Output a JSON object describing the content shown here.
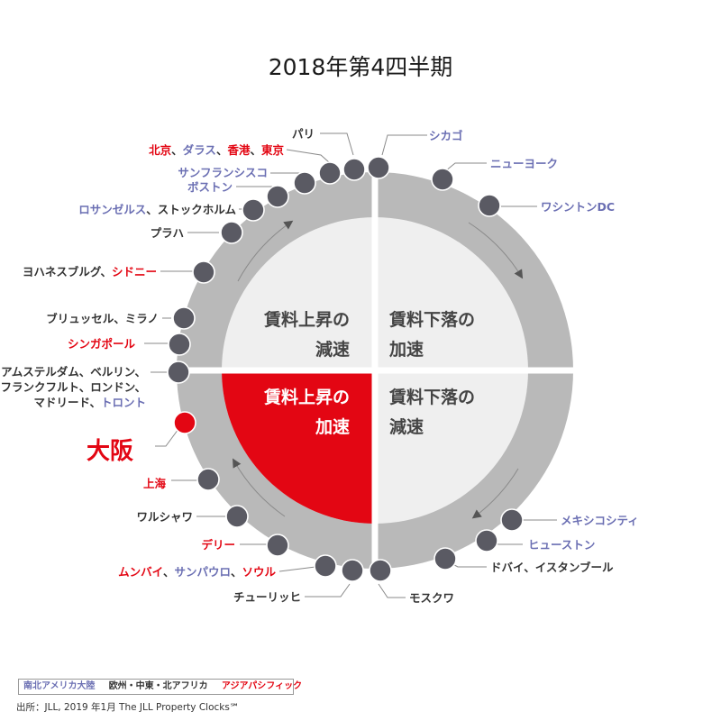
{
  "title": "2018年第4四半期",
  "colors": {
    "americas": "#6b6fb3",
    "emea": "#333333",
    "asia": "#e30613",
    "ring": "#b9b9b9",
    "inner": "#efefef",
    "highlight": "#e30613",
    "dot": "#5a5a63"
  },
  "quadrants": {
    "top_left": [
      "賃料上昇の",
      "減速"
    ],
    "top_right": [
      "賃料下落の",
      "加速"
    ],
    "bottom_left": [
      "賃料上昇の",
      "加速"
    ],
    "bottom_right": [
      "賃料下落の",
      "減速"
    ]
  },
  "labels": [
    {
      "parts": [
        {
          "text": "パリ",
          "region": "emea"
        }
      ]
    },
    {
      "parts": [
        {
          "text": "シカゴ",
          "region": "americas"
        }
      ]
    },
    {
      "parts": [
        {
          "text": "ニューヨーク",
          "region": "americas"
        }
      ]
    },
    {
      "parts": [
        {
          "text": "ワシントンDC",
          "region": "americas"
        }
      ]
    },
    {
      "parts": [
        {
          "text": "北京",
          "region": "asia"
        },
        {
          "text": "、",
          "region": "emea"
        },
        {
          "text": "ダラス",
          "region": "americas"
        },
        {
          "text": "、",
          "region": "emea"
        },
        {
          "text": "香港",
          "region": "asia"
        },
        {
          "text": "、",
          "region": "emea"
        },
        {
          "text": "東京",
          "region": "asia"
        }
      ]
    },
    {
      "parts": [
        {
          "text": "サンフランシスコ",
          "region": "americas"
        }
      ]
    },
    {
      "parts": [
        {
          "text": "ボストン",
          "region": "americas"
        }
      ]
    },
    {
      "parts": [
        {
          "text": "ロサンゼルス",
          "region": "americas"
        },
        {
          "text": "、ストックホルム",
          "region": "emea"
        }
      ]
    },
    {
      "parts": [
        {
          "text": "プラハ",
          "region": "emea"
        }
      ]
    },
    {
      "parts": [
        {
          "text": "ヨハネスブルグ、",
          "region": "emea"
        },
        {
          "text": "シドニー",
          "region": "asia"
        }
      ]
    },
    {
      "parts": [
        {
          "text": "ブリュッセル、ミラノ",
          "region": "emea"
        }
      ]
    },
    {
      "parts": [
        {
          "text": "シンガポール",
          "region": "asia"
        }
      ]
    },
    {
      "parts": [
        {
          "text": "アムステルダム、ベルリン、",
          "region": "emea"
        }
      ]
    },
    {
      "parts": [
        {
          "text": "フランクフルト、ロンドン、",
          "region": "emea"
        }
      ]
    },
    {
      "parts": [
        {
          "text": "マドリード、",
          "region": "emea"
        },
        {
          "text": "トロント",
          "region": "americas"
        }
      ]
    },
    {
      "parts": [
        {
          "text": "大阪",
          "region": "asia"
        }
      ],
      "big": true
    },
    {
      "parts": [
        {
          "text": "上海",
          "region": "asia"
        }
      ]
    },
    {
      "parts": [
        {
          "text": "ワルシャワ",
          "region": "emea"
        }
      ]
    },
    {
      "parts": [
        {
          "text": "デリー",
          "region": "asia"
        }
      ]
    },
    {
      "parts": [
        {
          "text": "ムンバイ",
          "region": "asia"
        },
        {
          "text": "、",
          "region": "emea"
        },
        {
          "text": "サンパウロ",
          "region": "americas"
        },
        {
          "text": "、",
          "region": "emea"
        },
        {
          "text": "ソウル",
          "region": "asia"
        }
      ]
    },
    {
      "parts": [
        {
          "text": "チューリッヒ",
          "region": "emea"
        }
      ]
    },
    {
      "parts": [
        {
          "text": "モスクワ",
          "region": "emea"
        }
      ]
    },
    {
      "parts": [
        {
          "text": "ドバイ、イスタンブール",
          "region": "emea"
        }
      ]
    },
    {
      "parts": [
        {
          "text": "ヒューストン",
          "region": "americas"
        }
      ]
    },
    {
      "parts": [
        {
          "text": "メキシコシティ",
          "region": "americas"
        }
      ]
    }
  ],
  "legend": [
    {
      "text": "南北アメリカ大陸",
      "region": "americas"
    },
    {
      "text": "欧州・中東・北アフリカ",
      "region": "emea"
    },
    {
      "text": "アジアパシフィック",
      "region": "asia"
    }
  ],
  "source": "出所：JLL, 2019 年1月  The JLL Property Clocks℠"
}
